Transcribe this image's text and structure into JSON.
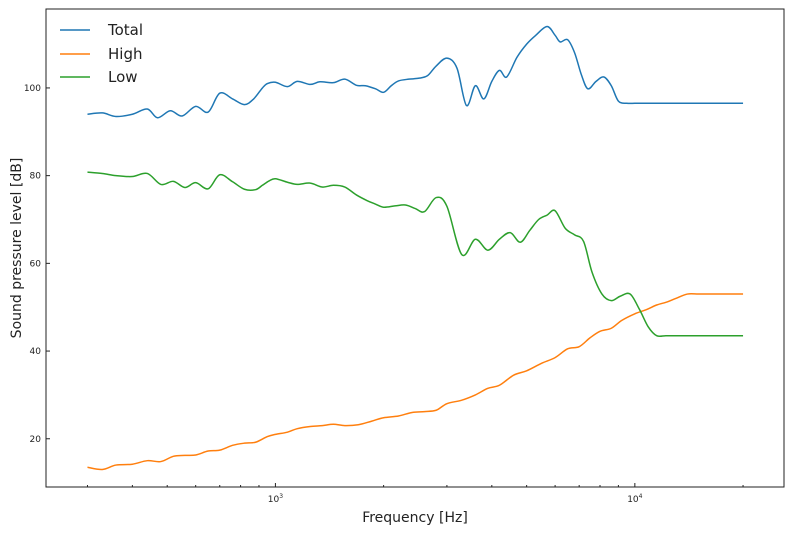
{
  "chart_data": {
    "type": "line",
    "title": "",
    "xlabel": "Frequency [Hz]",
    "ylabel": "Sound pressure level [dB]",
    "xscale": "log",
    "xlim": [
      230,
      26000
    ],
    "ylim": [
      9,
      118
    ],
    "xticks": [
      {
        "value": 1000,
        "label": "10",
        "exp": "3"
      },
      {
        "value": 10000,
        "label": "10",
        "exp": "4"
      }
    ],
    "yticks": [
      20,
      40,
      60,
      80,
      100
    ],
    "grid": false,
    "legend": "top-left",
    "series": [
      {
        "name": "Total",
        "color": "#1f77b4",
        "x": [
          300,
          330,
          360,
          400,
          440,
          470,
          510,
          550,
          600,
          650,
          700,
          760,
          820,
          870,
          920,
          950,
          1000,
          1080,
          1150,
          1250,
          1330,
          1450,
          1560,
          1680,
          1780,
          1900,
          2000,
          2100,
          2200,
          2350,
          2500,
          2650,
          2800,
          3000,
          3200,
          3400,
          3600,
          3800,
          4000,
          4200,
          4400,
          4700,
          5000,
          5300,
          5700,
          6000,
          6200,
          6500,
          6800,
          7100,
          7400,
          7800,
          8200,
          8600,
          9000,
          9500,
          10000,
          10500,
          11000,
          11500,
          12000,
          12500,
          13000,
          13500,
          14000,
          14500,
          15000,
          15500,
          16500,
          17500,
          18000,
          19000,
          20000
        ],
        "values": [
          94,
          94.3,
          93.5,
          94,
          95.2,
          93.2,
          94.8,
          93.6,
          95.8,
          94.5,
          98.8,
          97.5,
          96.2,
          97.5,
          100,
          101,
          101.3,
          100.3,
          101.5,
          100.8,
          101.4,
          101.2,
          102,
          100.6,
          100.5,
          99.8,
          99,
          100.5,
          101.6,
          102,
          102.2,
          102.8,
          105,
          106.8,
          104.5,
          96,
          100.5,
          97.5,
          101.5,
          104,
          102.5,
          107,
          110,
          112,
          114,
          112,
          110.5,
          111,
          108,
          103,
          99.8,
          101.5,
          102.5,
          100.5,
          97,
          96.5,
          96.5,
          96.5,
          96.5,
          96.5,
          96.5,
          96.5,
          96.5,
          96.5,
          96.5,
          96.5,
          96.5,
          96.5,
          96.5,
          96.5,
          96.5,
          96.5,
          96.5
        ]
      },
      {
        "name": "High",
        "color": "#ff7f0e",
        "x": [
          300,
          330,
          360,
          400,
          440,
          480,
          520,
          560,
          600,
          650,
          700,
          760,
          820,
          880,
          950,
          1000,
          1080,
          1150,
          1250,
          1350,
          1450,
          1560,
          1700,
          1850,
          2000,
          2200,
          2400,
          2600,
          2800,
          3000,
          3300,
          3600,
          3900,
          4200,
          4600,
          5000,
          5500,
          6000,
          6500,
          7000,
          7500,
          8000,
          8600,
          9200,
          10000,
          10800,
          11500,
          12300,
          13000,
          14000,
          15000,
          16000,
          17000,
          18000,
          19000,
          20000
        ],
        "values": [
          13.5,
          13,
          14,
          14.2,
          15,
          14.8,
          16,
          16.2,
          16.3,
          17.2,
          17.4,
          18.5,
          19,
          19.2,
          20.5,
          21,
          21.5,
          22.3,
          22.8,
          23,
          23.3,
          23,
          23.2,
          24,
          24.8,
          25.2,
          26,
          26.2,
          26.5,
          28,
          28.8,
          30,
          31.5,
          32.2,
          34.5,
          35.5,
          37.2,
          38.5,
          40.5,
          41,
          43,
          44.5,
          45.2,
          47,
          48.5,
          49.5,
          50.5,
          51.2,
          52,
          53,
          53,
          53,
          53,
          53,
          53,
          53
        ],
        "valuesNote": ""
      },
      {
        "name": "Low",
        "color": "#2ca02c",
        "x": [
          300,
          330,
          360,
          400,
          440,
          480,
          520,
          560,
          600,
          650,
          700,
          760,
          820,
          880,
          920,
          960,
          1000,
          1080,
          1150,
          1250,
          1350,
          1450,
          1560,
          1680,
          1800,
          1900,
          2000,
          2150,
          2300,
          2450,
          2600,
          2800,
          3000,
          3300,
          3600,
          3900,
          4200,
          4500,
          4800,
          5100,
          5400,
          5700,
          6000,
          6400,
          6800,
          7200,
          7600,
          8100,
          8600,
          9100,
          9700,
          10300,
          10900,
          11500,
          12200,
          13000,
          13800,
          14500,
          15300,
          16200,
          17000,
          18000,
          19000,
          20000
        ],
        "values": [
          80.8,
          80.5,
          80,
          79.8,
          80.5,
          78,
          78.7,
          77.3,
          78.4,
          77,
          80.2,
          78.6,
          76.9,
          76.8,
          77.8,
          78.8,
          79.3,
          78.5,
          78,
          78.3,
          77.4,
          77.8,
          77.4,
          75.6,
          74.3,
          73.5,
          72.8,
          73.1,
          73.3,
          72.5,
          71.8,
          75,
          73,
          62,
          65.5,
          63,
          65.5,
          67,
          64.8,
          67.5,
          70,
          71,
          72,
          68,
          66.5,
          65,
          58,
          53,
          51.5,
          52.5,
          53,
          49.5,
          45.5,
          43.5,
          43.5,
          43.5,
          43.5,
          43.5,
          43.5,
          43.5,
          43.5,
          43.5,
          43.5,
          43.5
        ]
      }
    ]
  }
}
